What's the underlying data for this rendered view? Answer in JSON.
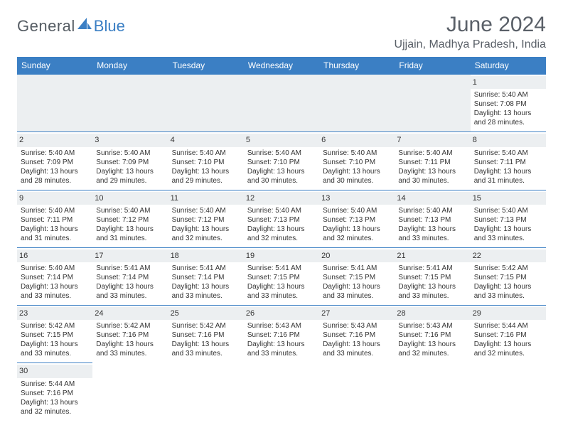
{
  "brand": {
    "general": "General",
    "blue": "Blue",
    "logo_color": "#3b7fc4",
    "general_color": "#555c63"
  },
  "title": {
    "month": "June 2024",
    "location": "Ujjain, Madhya Pradesh, India"
  },
  "colors": {
    "header_bg": "#3b7fc4",
    "header_text": "#ffffff",
    "daynum_bg": "#eceff1",
    "border": "#3b7fc4",
    "text": "#333333",
    "title_color": "#5a6068"
  },
  "weekdays": [
    "Sunday",
    "Monday",
    "Tuesday",
    "Wednesday",
    "Thursday",
    "Friday",
    "Saturday"
  ],
  "days": {
    "1": {
      "sunrise": "Sunrise: 5:40 AM",
      "sunset": "Sunset: 7:08 PM",
      "daylight": "Daylight: 13 hours and 28 minutes."
    },
    "2": {
      "sunrise": "Sunrise: 5:40 AM",
      "sunset": "Sunset: 7:09 PM",
      "daylight": "Daylight: 13 hours and 28 minutes."
    },
    "3": {
      "sunrise": "Sunrise: 5:40 AM",
      "sunset": "Sunset: 7:09 PM",
      "daylight": "Daylight: 13 hours and 29 minutes."
    },
    "4": {
      "sunrise": "Sunrise: 5:40 AM",
      "sunset": "Sunset: 7:10 PM",
      "daylight": "Daylight: 13 hours and 29 minutes."
    },
    "5": {
      "sunrise": "Sunrise: 5:40 AM",
      "sunset": "Sunset: 7:10 PM",
      "daylight": "Daylight: 13 hours and 30 minutes."
    },
    "6": {
      "sunrise": "Sunrise: 5:40 AM",
      "sunset": "Sunset: 7:10 PM",
      "daylight": "Daylight: 13 hours and 30 minutes."
    },
    "7": {
      "sunrise": "Sunrise: 5:40 AM",
      "sunset": "Sunset: 7:11 PM",
      "daylight": "Daylight: 13 hours and 30 minutes."
    },
    "8": {
      "sunrise": "Sunrise: 5:40 AM",
      "sunset": "Sunset: 7:11 PM",
      "daylight": "Daylight: 13 hours and 31 minutes."
    },
    "9": {
      "sunrise": "Sunrise: 5:40 AM",
      "sunset": "Sunset: 7:11 PM",
      "daylight": "Daylight: 13 hours and 31 minutes."
    },
    "10": {
      "sunrise": "Sunrise: 5:40 AM",
      "sunset": "Sunset: 7:12 PM",
      "daylight": "Daylight: 13 hours and 31 minutes."
    },
    "11": {
      "sunrise": "Sunrise: 5:40 AM",
      "sunset": "Sunset: 7:12 PM",
      "daylight": "Daylight: 13 hours and 32 minutes."
    },
    "12": {
      "sunrise": "Sunrise: 5:40 AM",
      "sunset": "Sunset: 7:13 PM",
      "daylight": "Daylight: 13 hours and 32 minutes."
    },
    "13": {
      "sunrise": "Sunrise: 5:40 AM",
      "sunset": "Sunset: 7:13 PM",
      "daylight": "Daylight: 13 hours and 32 minutes."
    },
    "14": {
      "sunrise": "Sunrise: 5:40 AM",
      "sunset": "Sunset: 7:13 PM",
      "daylight": "Daylight: 13 hours and 33 minutes."
    },
    "15": {
      "sunrise": "Sunrise: 5:40 AM",
      "sunset": "Sunset: 7:13 PM",
      "daylight": "Daylight: 13 hours and 33 minutes."
    },
    "16": {
      "sunrise": "Sunrise: 5:40 AM",
      "sunset": "Sunset: 7:14 PM",
      "daylight": "Daylight: 13 hours and 33 minutes."
    },
    "17": {
      "sunrise": "Sunrise: 5:41 AM",
      "sunset": "Sunset: 7:14 PM",
      "daylight": "Daylight: 13 hours and 33 minutes."
    },
    "18": {
      "sunrise": "Sunrise: 5:41 AM",
      "sunset": "Sunset: 7:14 PM",
      "daylight": "Daylight: 13 hours and 33 minutes."
    },
    "19": {
      "sunrise": "Sunrise: 5:41 AM",
      "sunset": "Sunset: 7:15 PM",
      "daylight": "Daylight: 13 hours and 33 minutes."
    },
    "20": {
      "sunrise": "Sunrise: 5:41 AM",
      "sunset": "Sunset: 7:15 PM",
      "daylight": "Daylight: 13 hours and 33 minutes."
    },
    "21": {
      "sunrise": "Sunrise: 5:41 AM",
      "sunset": "Sunset: 7:15 PM",
      "daylight": "Daylight: 13 hours and 33 minutes."
    },
    "22": {
      "sunrise": "Sunrise: 5:42 AM",
      "sunset": "Sunset: 7:15 PM",
      "daylight": "Daylight: 13 hours and 33 minutes."
    },
    "23": {
      "sunrise": "Sunrise: 5:42 AM",
      "sunset": "Sunset: 7:15 PM",
      "daylight": "Daylight: 13 hours and 33 minutes."
    },
    "24": {
      "sunrise": "Sunrise: 5:42 AM",
      "sunset": "Sunset: 7:16 PM",
      "daylight": "Daylight: 13 hours and 33 minutes."
    },
    "25": {
      "sunrise": "Sunrise: 5:42 AM",
      "sunset": "Sunset: 7:16 PM",
      "daylight": "Daylight: 13 hours and 33 minutes."
    },
    "26": {
      "sunrise": "Sunrise: 5:43 AM",
      "sunset": "Sunset: 7:16 PM",
      "daylight": "Daylight: 13 hours and 33 minutes."
    },
    "27": {
      "sunrise": "Sunrise: 5:43 AM",
      "sunset": "Sunset: 7:16 PM",
      "daylight": "Daylight: 13 hours and 33 minutes."
    },
    "28": {
      "sunrise": "Sunrise: 5:43 AM",
      "sunset": "Sunset: 7:16 PM",
      "daylight": "Daylight: 13 hours and 32 minutes."
    },
    "29": {
      "sunrise": "Sunrise: 5:44 AM",
      "sunset": "Sunset: 7:16 PM",
      "daylight": "Daylight: 13 hours and 32 minutes."
    },
    "30": {
      "sunrise": "Sunrise: 5:44 AM",
      "sunset": "Sunset: 7:16 PM",
      "daylight": "Daylight: 13 hours and 32 minutes."
    }
  },
  "grid": [
    [
      null,
      null,
      null,
      null,
      null,
      null,
      "1"
    ],
    [
      "2",
      "3",
      "4",
      "5",
      "6",
      "7",
      "8"
    ],
    [
      "9",
      "10",
      "11",
      "12",
      "13",
      "14",
      "15"
    ],
    [
      "16",
      "17",
      "18",
      "19",
      "20",
      "21",
      "22"
    ],
    [
      "23",
      "24",
      "25",
      "26",
      "27",
      "28",
      "29"
    ],
    [
      "30",
      null,
      null,
      null,
      null,
      null,
      null
    ]
  ]
}
